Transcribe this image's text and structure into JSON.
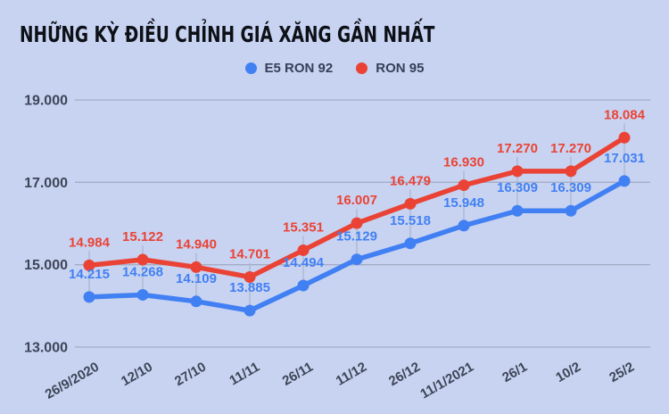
{
  "colors": {
    "background": "#c8d3f1",
    "title_text": "#0d1016",
    "legend_text": "#35405a",
    "axis_text": "#3d4557",
    "gridline": "#a3adc6",
    "dropline": "#a9b3ca"
  },
  "legend": [
    {
      "label": "E5 RON 92",
      "color": "#4180f3"
    },
    {
      "label": "RON 95",
      "color": "#ea4335"
    }
  ],
  "chart_data": {
    "type": "line",
    "title": "NHỮNG KỲ ĐIỀU CHỈNH GIÁ XĂNG GẦN NHẤT",
    "categories": [
      "26/9/2020",
      "12/10",
      "27/10",
      "11/11",
      "26/11",
      "11/12",
      "26/12",
      "11/1/2021",
      "26/1",
      "10/2",
      "25/2"
    ],
    "series": [
      {
        "name": "E5 RON 92",
        "color": "#4180f3",
        "values": [
          14215,
          14268,
          14109,
          13885,
          14494,
          15129,
          15518,
          15948,
          16309,
          16309,
          17031
        ]
      },
      {
        "name": "RON 95",
        "color": "#ea4335",
        "values": [
          14984,
          15122,
          14940,
          14701,
          15351,
          16007,
          16479,
          16930,
          17270,
          17270,
          18084
        ]
      }
    ],
    "ylim": [
      13000,
      19000
    ],
    "yticks": [
      19000,
      17000,
      15000,
      13000
    ],
    "ytick_labels": [
      "19.000",
      "17.000",
      "15.000",
      "13.000"
    ],
    "grid": true,
    "legend_position": "top-center",
    "point_labels": true,
    "number_format": "thousands-dot",
    "x_label_rotation_deg": -30
  }
}
